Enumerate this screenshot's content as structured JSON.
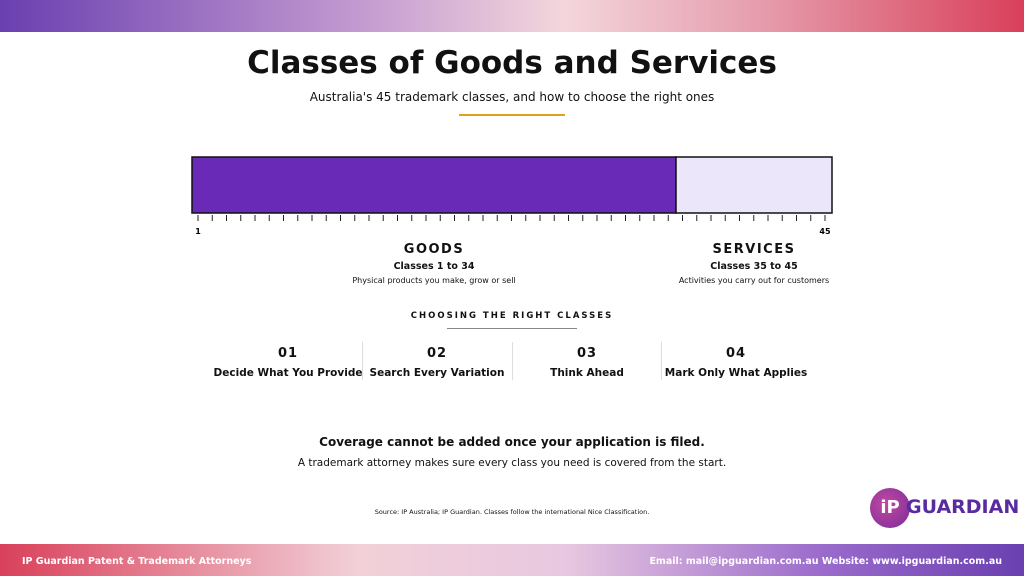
{
  "header": {
    "title": "Classes of Goods and Services",
    "subtitle": "Australia's 45 trademark classes, and how to choose the right ones"
  },
  "scale": {
    "start": 1,
    "end": 45
  },
  "groups": [
    {
      "name": "GOODS",
      "range": "Classes 1 to 34",
      "description": "Physical products you make, grow or sell"
    },
    {
      "name": "SERVICES",
      "range": "Classes 35 to 45",
      "description": "Activities you carry out for customers"
    }
  ],
  "steps_heading": "CHOOSING THE RIGHT CLASSES",
  "steps": [
    {
      "number": "01",
      "label": "Decide What You Provide"
    },
    {
      "number": "02",
      "label": "Search Every Variation"
    },
    {
      "number": "03",
      "label": "Think Ahead"
    },
    {
      "number": "04",
      "label": "Mark Only What Applies"
    }
  ],
  "callout": {
    "headline": "Coverage cannot be added once your application is filed.",
    "text": "A trademark attorney makes sure every class you need is covered from the start."
  },
  "source": "Source: IP Australia; IP Guardian. Classes follow the international Nice Classification.",
  "logo": {
    "mark": "iP",
    "word": "GUARDIAN"
  },
  "footer": {
    "left": "IP Guardian Patent & Trademark Attorneys",
    "right": "Email: mail@ipguardian.com.au Website: www.ipguardian.com.au"
  }
}
